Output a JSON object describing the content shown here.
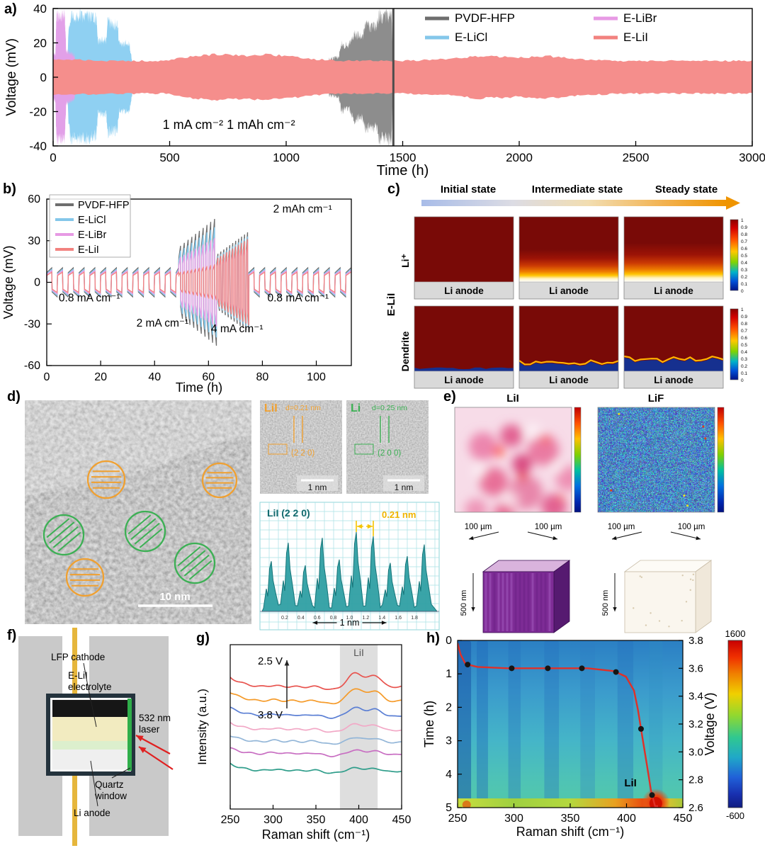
{
  "panel_a": {
    "label": "a)",
    "xlabel": "Time (h)",
    "ylabel": "Voltage (mV)",
    "xlim": [
      0,
      3000
    ],
    "ylim": [
      -40,
      40
    ],
    "xticks": [
      0,
      500,
      1000,
      1500,
      2000,
      2500,
      3000
    ],
    "yticks": [
      -40,
      -20,
      0,
      20,
      40
    ],
    "annotation": "1 mA cm⁻²  1 mAh cm⁻²",
    "legend": [
      {
        "label": "PVDF-HFP",
        "color": "#6e6e6e"
      },
      {
        "label": "E-LiCl",
        "color": "#84c7ea"
      },
      {
        "label": "E-LiBr",
        "color": "#e79ae4"
      },
      {
        "label": "E-LiI",
        "color": "#f2827f"
      }
    ],
    "bands": [
      {
        "name": "E-LiCl",
        "color": "#8fd0f2",
        "jitter": 0.22,
        "profile": [
          [
            58,
            0
          ],
          [
            66,
            28
          ],
          [
            75,
            40
          ],
          [
            150,
            40
          ],
          [
            185,
            38
          ],
          [
            192,
            24
          ],
          [
            228,
            24
          ],
          [
            234,
            36
          ],
          [
            276,
            34
          ],
          [
            284,
            22
          ],
          [
            326,
            22
          ],
          [
            338,
            12
          ],
          [
            350,
            0
          ]
        ]
      },
      {
        "name": "E-LiBr",
        "color": "#e2a0e8",
        "jitter": 0.2,
        "profile": [
          [
            0,
            15
          ],
          [
            10,
            15
          ],
          [
            14,
            40
          ],
          [
            50,
            40
          ],
          [
            56,
            17
          ],
          [
            92,
            14
          ],
          [
            100,
            0
          ]
        ]
      },
      {
        "name": "PVDF-HFP",
        "color": "#8d8d8d",
        "jitter": 0.22,
        "profile": [
          [
            1175,
            0
          ],
          [
            1185,
            12
          ],
          [
            1225,
            13
          ],
          [
            1238,
            22
          ],
          [
            1268,
            20
          ],
          [
            1288,
            28
          ],
          [
            1328,
            26
          ],
          [
            1340,
            34
          ],
          [
            1388,
            32
          ],
          [
            1398,
            40
          ],
          [
            1452,
            40
          ],
          [
            1460,
            0
          ]
        ]
      },
      {
        "name": "E-LiI",
        "color": "#f58e8c",
        "jitter": 0.1,
        "profile": [
          [
            0,
            11
          ],
          [
            250,
            10
          ],
          [
            480,
            10
          ],
          [
            600,
            13
          ],
          [
            700,
            14
          ],
          [
            820,
            13
          ],
          [
            900,
            14
          ],
          [
            1000,
            13
          ],
          [
            1120,
            11
          ],
          [
            1250,
            10
          ],
          [
            1500,
            10
          ],
          [
            1700,
            11
          ],
          [
            1820,
            13
          ],
          [
            2000,
            12
          ],
          [
            2120,
            13
          ],
          [
            2250,
            11
          ],
          [
            2450,
            10
          ],
          [
            2700,
            10
          ],
          [
            3000,
            10
          ]
        ]
      }
    ],
    "fail_line_x": 1460
  },
  "panel_b": {
    "label": "b)",
    "xlabel": "Time (h)",
    "ylabel": "Voltage (mV)",
    "xlim": [
      0,
      113
    ],
    "ylim": [
      -60,
      60
    ],
    "xticks": [
      0,
      20,
      40,
      60,
      80,
      100
    ],
    "yticks": [
      -60,
      -30,
      0,
      30,
      60
    ],
    "legend": [
      {
        "label": "PVDF-HFP",
        "color": "#6e6e6e"
      },
      {
        "label": "E-LiCl",
        "color": "#84c7ea"
      },
      {
        "label": "E-LiBr",
        "color": "#e79ae4"
      },
      {
        "label": "E-LiI",
        "color": "#f2827f"
      }
    ],
    "annotations": [
      {
        "text": "2 mAh cm⁻¹",
        "fx": 0.84,
        "fy": 0.08
      },
      {
        "text": "0.8 mA cm⁻¹",
        "fx": 0.14,
        "fy": 0.615
      },
      {
        "text": "2 mA cm⁻¹",
        "fx": 0.38,
        "fy": 0.765
      },
      {
        "text": "4 mA cm⁻¹",
        "fx": 0.625,
        "fy": 0.8
      },
      {
        "text": "0.8 mA cm⁻¹",
        "fx": 0.825,
        "fy": 0.615
      }
    ],
    "segments": [
      {
        "t0": 0,
        "t1": 49,
        "period": 4,
        "amps": [
          10,
          9,
          8,
          7
        ]
      },
      {
        "t0": 49,
        "t1": 63,
        "period": 1.4,
        "amps": [
          46,
          40,
          32,
          13
        ],
        "grow": true
      },
      {
        "t0": 63,
        "t1": 75,
        "period": 1.1,
        "amps": [
          36,
          33,
          29,
          31
        ],
        "grow": true
      },
      {
        "t0": 75,
        "t1": 113,
        "period": 4,
        "amps": [
          10,
          9,
          8,
          7
        ]
      }
    ]
  },
  "panel_c": {
    "label": "c)",
    "states": [
      "Initial state",
      "Intermediate state",
      "Steady state"
    ],
    "group_label": "E-LiI",
    "row_labels": [
      "Li⁺",
      "Dendrite"
    ],
    "anode_label": "Li anode",
    "colorbar_ticks": [
      "1",
      "0.9",
      "0.8",
      "0.7",
      "0.6",
      "0.5",
      "0.4",
      "0.3",
      "0.2",
      "0.1",
      "0"
    ]
  },
  "panel_d": {
    "label": "d)",
    "scale_main": "10 nm",
    "inset1": {
      "name": "LiI",
      "d": "d=0.21 nm",
      "plane": "(2 2 0)",
      "scale": "1 nm"
    },
    "inset2": {
      "name": "Li",
      "d": "d=0.25 nm",
      "plane": "(2 0 0)",
      "scale": "1 nm"
    },
    "profile": {
      "title": "LiI (2 2 0)",
      "measure": "0.21 nm",
      "xunit": "1 nm",
      "xticks": [
        "0.2",
        "0.4",
        "0.6",
        "0.8",
        "1.0",
        "1.2",
        "1.4",
        "1.6",
        "1.8"
      ],
      "peaks": [
        0.6,
        0.82,
        0.55,
        0.88,
        0.62,
        0.95,
        0.9,
        0.58,
        0.66,
        0.8
      ]
    }
  },
  "panel_e": {
    "label": "e)",
    "map1_title": "LiI",
    "map2_title": "LiF",
    "scale_label": "100 µm",
    "depth_label": "500 nm"
  },
  "panel_f": {
    "label": "f)",
    "cathode": "LFP cathode",
    "electrolyte": [
      "E-LiI",
      "electrolyte"
    ],
    "laser": [
      "532 nm",
      "laser"
    ],
    "window": [
      "Quartz",
      "window"
    ],
    "anode": "Li anode"
  },
  "panel_g": {
    "label": "g)",
    "xlabel": "Raman shift (cm⁻¹)",
    "ylabel": "Intensity (a.u.)",
    "xticks": [
      250,
      300,
      350,
      400,
      450
    ],
    "xlim": [
      250,
      450
    ],
    "band": {
      "from": 378,
      "to": 422,
      "label": "LiI"
    },
    "arrow_top": "2.5 V",
    "arrow_bottom": "3.8 V",
    "curves": [
      {
        "color": "#e8534e",
        "peak": 22,
        "left": 16
      },
      {
        "color": "#f59a28",
        "peak": 20,
        "left": 15
      },
      {
        "color": "#5b7fd4",
        "peak": 13,
        "left": 13
      },
      {
        "color": "#f2a8c6",
        "peak": 10,
        "left": 12
      },
      {
        "color": "#93b6d8",
        "peak": 8,
        "left": 11
      },
      {
        "color": "#c86ec2",
        "peak": 7,
        "left": 10
      },
      {
        "color": "#2e9d8a",
        "peak": 6,
        "left": 12
      }
    ]
  },
  "panel_h": {
    "label": "h)",
    "xlabel": "Raman shift (cm⁻¹)",
    "ylabel_left": "Time (h)",
    "ylabel_right": "Voltage (V)",
    "xticks": [
      250,
      300,
      350,
      400,
      450
    ],
    "yticks_left": [
      0,
      1,
      2,
      3,
      4,
      5
    ],
    "yticks_right": [
      "3.8",
      "3.6",
      "3.4",
      "3.2",
      "3.0",
      "2.8",
      "2.6"
    ],
    "xlim": [
      250,
      450
    ],
    "tlim": [
      0,
      5
    ],
    "vlim": [
      3.8,
      2.6
    ],
    "annotation": "LiI",
    "colorbar_max": "1600",
    "colorbar_min": "-600",
    "voltage_curve": [
      [
        0,
        3.78
      ],
      [
        0.015,
        3.7
      ],
      [
        0.04,
        3.63
      ],
      [
        0.1,
        3.61
      ],
      [
        0.25,
        3.6
      ],
      [
        0.45,
        3.6
      ],
      [
        0.65,
        3.6
      ],
      [
        0.78,
        3.58
      ],
      [
        0.84,
        3.54
      ],
      [
        0.88,
        3.44
      ],
      [
        0.9,
        3.3
      ],
      [
        0.92,
        3.12
      ],
      [
        0.945,
        2.9
      ],
      [
        0.965,
        2.72
      ],
      [
        0.985,
        2.6
      ],
      [
        1,
        2.56
      ]
    ],
    "dots_t": [
      0.05,
      0.27,
      0.45,
      0.62,
      0.79,
      0.915,
      0.97
    ]
  }
}
